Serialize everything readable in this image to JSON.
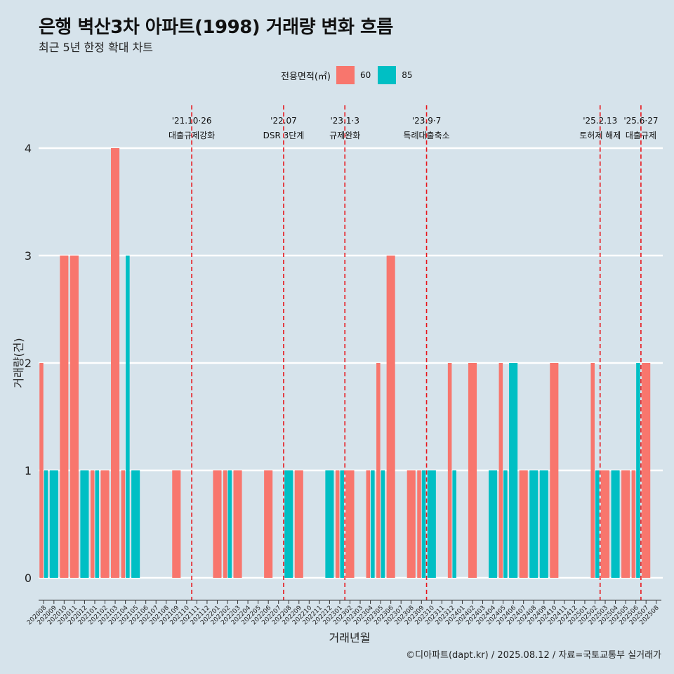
{
  "header": {
    "title": "은행 벽산3차 아파트(1998) 거래량 변화 흐름",
    "subtitle": "최근 5년 한정 확대 차트"
  },
  "legend": {
    "title": "전용면적(㎡)",
    "items": [
      {
        "label": "60",
        "color": "#f8766d"
      },
      {
        "label": "85",
        "color": "#00bfc4"
      }
    ]
  },
  "caption": "©디아파트(dapt.kr) / 2025.08.12 / 자료=국토교통부 실거래가",
  "chart_data": {
    "type": "bar",
    "xlabel": "거래년월",
    "ylabel": "거래량(건)",
    "ylim": [
      0,
      4
    ],
    "yticks": [
      0,
      1,
      2,
      3,
      4
    ],
    "grid": "horizontal",
    "legend_position": "top",
    "categories": [
      "202008",
      "202009",
      "202010",
      "202011",
      "202012",
      "202101",
      "202102",
      "202103",
      "202104",
      "202105",
      "202106",
      "202107",
      "202108",
      "202109",
      "202110",
      "202111",
      "202112",
      "202201",
      "202202",
      "202203",
      "202204",
      "202205",
      "202206",
      "202207",
      "202208",
      "202209",
      "202210",
      "202211",
      "202212",
      "202301",
      "202302",
      "202303",
      "202304",
      "202305",
      "202306",
      "202307",
      "202308",
      "202309",
      "202310",
      "202311",
      "202312",
      "202401",
      "202402",
      "202403",
      "202404",
      "202405",
      "202406",
      "202407",
      "202408",
      "202409",
      "202410",
      "202411",
      "202412",
      "202501",
      "202502",
      "202503",
      "202504",
      "202505",
      "202506",
      "202507",
      "202508"
    ],
    "series": [
      {
        "name": "60",
        "color": "#f8766d",
        "values": [
          2,
          0,
          3,
          3,
          0,
          1,
          1,
          4,
          1,
          0,
          0,
          0,
          0,
          1,
          0,
          0,
          0,
          1,
          1,
          1,
          0,
          0,
          1,
          0,
          0,
          1,
          0,
          0,
          0,
          1,
          1,
          0,
          1,
          2,
          3,
          0,
          1,
          1,
          0,
          0,
          2,
          0,
          2,
          0,
          0,
          2,
          0,
          1,
          0,
          0,
          2,
          0,
          0,
          0,
          2,
          1,
          0,
          1,
          1,
          2,
          0
        ]
      },
      {
        "name": "85",
        "color": "#00bfc4",
        "values": [
          1,
          1,
          0,
          0,
          1,
          1,
          0,
          0,
          3,
          1,
          0,
          0,
          0,
          0,
          0,
          0,
          0,
          0,
          1,
          0,
          0,
          0,
          0,
          0,
          1,
          0,
          0,
          0,
          1,
          1,
          0,
          0,
          1,
          1,
          0,
          0,
          0,
          1,
          1,
          0,
          1,
          0,
          0,
          0,
          1,
          1,
          2,
          0,
          1,
          1,
          0,
          0,
          0,
          0,
          1,
          0,
          1,
          0,
          2,
          0,
          0
        ]
      }
    ],
    "annotations": [
      {
        "after": "202110",
        "date": "'21.10·26",
        "text": "대출규제강화"
      },
      {
        "after": "202207",
        "date": "'22.07",
        "text": "DSR 3단계"
      },
      {
        "after": "202301",
        "date": "'23.1·3",
        "text": "규제완화"
      },
      {
        "after": "202309",
        "date": "'23.9·7",
        "text": "특례대출축소"
      },
      {
        "after": "202502",
        "date": "'25.2.13",
        "text": "토허제 해제"
      },
      {
        "after": "202506",
        "date": "'25.6·27",
        "text": "대출규제"
      }
    ]
  }
}
